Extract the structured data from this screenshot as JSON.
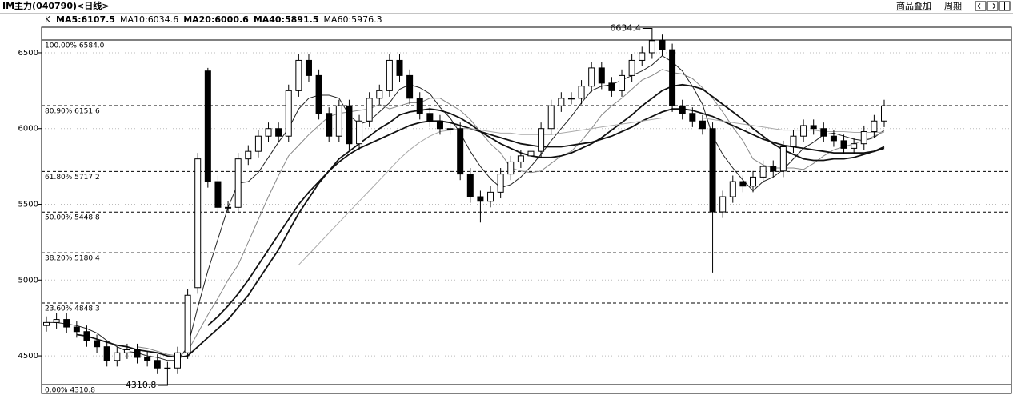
{
  "header": {
    "title": "IM主力(040790)<日线>",
    "overlay": "商品叠加",
    "period": "周期"
  },
  "chart_data": {
    "type": "candlestick",
    "indicator": "K",
    "ylim": [
      4263,
      6753
    ],
    "yticks": [
      4500,
      5000,
      5500,
      6000,
      6500
    ],
    "grid": true,
    "up_color": "#ffffff",
    "down_color": "#000000",
    "open": [
      4700,
      4720,
      4740,
      4690,
      4660,
      4600,
      4560,
      4470,
      4520,
      4540,
      4490,
      4470,
      4420,
      4420,
      4520,
      4950,
      6380,
      5650,
      5480,
      5480,
      5800,
      5850,
      5950,
      6000,
      5950,
      6250,
      6450,
      6350,
      6100,
      5950,
      6150,
      5900,
      6050,
      6200,
      6250,
      6450,
      6350,
      6200,
      6100,
      6050,
      6000,
      6000,
      5700,
      5550,
      5520,
      5580,
      5700,
      5780,
      5820,
      5850,
      6000,
      6150,
      6200,
      6200,
      6280,
      6400,
      6300,
      6250,
      6350,
      6450,
      6500,
      6580,
      6520,
      6150,
      6100,
      6050,
      6000,
      5450,
      5550,
      5650,
      5620,
      5680,
      5750,
      5720,
      5880,
      5950,
      6020,
      6000,
      5950,
      5920,
      5870,
      5900,
      5980,
      6050
    ],
    "high": [
      4760,
      4780,
      4780,
      4730,
      4700,
      4640,
      4600,
      4560,
      4580,
      4580,
      4530,
      4510,
      4460,
      4560,
      4940,
      5840,
      6400,
      5690,
      5520,
      5840,
      5890,
      5990,
      6040,
      6040,
      6290,
      6490,
      6490,
      6390,
      6140,
      6190,
      6190,
      6090,
      6240,
      6290,
      6490,
      6490,
      6390,
      6240,
      6140,
      6090,
      6040,
      6040,
      5740,
      5590,
      5620,
      5740,
      5820,
      5860,
      5890,
      6040,
      6190,
      6240,
      6240,
      6320,
      6440,
      6440,
      6340,
      6390,
      6490,
      6540,
      6634.4,
      6620,
      6560,
      6190,
      6140,
      6090,
      6040,
      5590,
      5690,
      5690,
      5720,
      5790,
      5790,
      5920,
      5990,
      6060,
      6060,
      6040,
      5990,
      5960,
      5940,
      6020,
      6090,
      6190
    ],
    "low": [
      4660,
      4680,
      4650,
      4620,
      4560,
      4520,
      4430,
      4430,
      4480,
      4450,
      4430,
      4380,
      4310.8,
      4380,
      4480,
      4910,
      5610,
      5440,
      5440,
      5440,
      5760,
      5810,
      5910,
      5910,
      5910,
      6210,
      6310,
      6060,
      5910,
      5910,
      5860,
      5860,
      6010,
      6160,
      6210,
      6310,
      6160,
      6060,
      6010,
      5960,
      5960,
      5660,
      5510,
      5380,
      5480,
      5540,
      5660,
      5740,
      5780,
      5810,
      5960,
      6110,
      6160,
      6160,
      6240,
      6260,
      6210,
      6210,
      6310,
      6410,
      6460,
      6480,
      6110,
      6060,
      6010,
      5960,
      5050,
      5410,
      5510,
      5580,
      5580,
      5640,
      5680,
      5680,
      5840,
      5910,
      5960,
      5910,
      5880,
      5830,
      5830,
      5860,
      5940,
      6010
    ],
    "close": [
      4720,
      4740,
      4690,
      4660,
      4600,
      4560,
      4470,
      4520,
      4540,
      4490,
      4470,
      4420,
      4420,
      4520,
      4900,
      5800,
      5650,
      5480,
      5480,
      5800,
      5850,
      5950,
      6000,
      5950,
      6250,
      6450,
      6350,
      6100,
      5950,
      6150,
      5900,
      6050,
      6200,
      6250,
      6450,
      6350,
      6200,
      6100,
      6050,
      6000,
      6000,
      5700,
      5550,
      5520,
      5580,
      5700,
      5780,
      5820,
      5850,
      6000,
      6150,
      6200,
      6200,
      6280,
      6400,
      6300,
      6250,
      6350,
      6450,
      6500,
      6580,
      6520,
      6150,
      6100,
      6050,
      6000,
      5450,
      5550,
      5650,
      5620,
      5680,
      5750,
      5720,
      5880,
      5950,
      6020,
      6000,
      5950,
      5920,
      5870,
      5900,
      5980,
      6050,
      6150
    ],
    "series": [
      {
        "name": "MA5:6107.5",
        "color": "#222222",
        "width": 1,
        "values": [
          4720,
          4720,
          4710,
          4700,
          4680,
          4650,
          4600,
          4560,
          4530,
          4520,
          4500,
          4490,
          4470,
          4470,
          4560,
          4820,
          5060,
          5270,
          5480,
          5640,
          5650,
          5710,
          5810,
          5910,
          6000,
          6130,
          6200,
          6220,
          6220,
          6200,
          6090,
          6030,
          6050,
          6110,
          6170,
          6260,
          6290,
          6270,
          6230,
          6140,
          6070,
          5970,
          5850,
          5750,
          5670,
          5610,
          5630,
          5680,
          5750,
          5830,
          5920,
          6000,
          6080,
          6170,
          6250,
          6280,
          6290,
          6320,
          6350,
          6380,
          6420,
          6480,
          6440,
          6380,
          6280,
          6160,
          5950,
          5830,
          5740,
          5660,
          5590,
          5650,
          5680,
          5730,
          5800,
          5870,
          5910,
          5960,
          5970,
          5950,
          5930,
          5920,
          5940,
          5990
        ]
      },
      {
        "name": "MA10:6034.6",
        "color": "#888888",
        "width": 1,
        "values": [
          null,
          null,
          null,
          null,
          null,
          null,
          null,
          null,
          null,
          4560,
          4550,
          4530,
          4510,
          4500,
          4530,
          4650,
          4770,
          4880,
          5000,
          5100,
          5250,
          5400,
          5550,
          5690,
          5820,
          5890,
          5960,
          6020,
          6080,
          6100,
          6110,
          6120,
          6130,
          6160,
          6130,
          6150,
          6170,
          6170,
          6200,
          6200,
          6160,
          6120,
          6060,
          5980,
          5900,
          5840,
          5740,
          5720,
          5710,
          5720,
          5770,
          5820,
          5850,
          5920,
          6000,
          6090,
          6150,
          6200,
          6260,
          6320,
          6350,
          6390,
          6370,
          6360,
          6330,
          6270,
          6200,
          6110,
          6010,
          5920,
          5800,
          5760,
          5740,
          5740,
          5740,
          5730,
          5770,
          5820,
          5860,
          5880,
          5900,
          5920,
          5950,
          5980
        ]
      },
      {
        "name": "MA20:6000.6",
        "color": "#111111",
        "width": 1.8,
        "values": [
          null,
          null,
          null,
          4640,
          4630,
          4610,
          4590,
          4570,
          4560,
          4540,
          4530,
          4520,
          4500,
          4490,
          4500,
          4560,
          4620,
          4680,
          4740,
          4820,
          4900,
          5000,
          5100,
          5200,
          5320,
          5440,
          5540,
          5640,
          5720,
          5800,
          5850,
          5900,
          5950,
          6000,
          6040,
          6090,
          6110,
          6120,
          6130,
          6120,
          6100,
          6070,
          6030,
          5980,
          5940,
          5900,
          5870,
          5840,
          5820,
          5810,
          5810,
          5820,
          5840,
          5870,
          5900,
          5940,
          5990,
          6040,
          6090,
          6150,
          6200,
          6250,
          6280,
          6290,
          6280,
          6260,
          6210,
          6160,
          6110,
          6060,
          6000,
          5950,
          5900,
          5860,
          5830,
          5800,
          5790,
          5790,
          5800,
          5800,
          5810,
          5830,
          5850,
          5880
        ]
      },
      {
        "name": "MA40:5891.5",
        "color": "#111111",
        "width": 1.8,
        "values": [
          null,
          null,
          null,
          null,
          null,
          null,
          null,
          null,
          null,
          null,
          null,
          null,
          null,
          null,
          null,
          null,
          4700,
          4760,
          4830,
          4910,
          5000,
          5100,
          5200,
          5300,
          5400,
          5500,
          5580,
          5650,
          5720,
          5780,
          5830,
          5870,
          5900,
          5930,
          5960,
          5990,
          6020,
          6040,
          6050,
          6050,
          6040,
          6020,
          6000,
          5980,
          5960,
          5940,
          5920,
          5900,
          5890,
          5880,
          5880,
          5880,
          5890,
          5900,
          5910,
          5930,
          5950,
          5980,
          6010,
          6050,
          6080,
          6110,
          6130,
          6130,
          6120,
          6100,
          6080,
          6050,
          6020,
          5990,
          5960,
          5930,
          5910,
          5890,
          5880,
          5870,
          5860,
          5850,
          5840,
          5840,
          5840,
          5840,
          5850,
          5870
        ]
      },
      {
        "name": "MA60:5976.3",
        "color": "#aaaaaa",
        "width": 1,
        "values": [
          null,
          null,
          null,
          null,
          null,
          null,
          null,
          null,
          null,
          null,
          null,
          null,
          null,
          null,
          null,
          null,
          null,
          null,
          null,
          null,
          null,
          null,
          null,
          null,
          null,
          5100,
          5170,
          5240,
          5310,
          5380,
          5450,
          5520,
          5590,
          5660,
          5730,
          5800,
          5860,
          5910,
          5950,
          5980,
          5990,
          6000,
          6000,
          5990,
          5980,
          5970,
          5970,
          5960,
          5960,
          5960,
          5960,
          5970,
          5980,
          5990,
          6000,
          6010,
          6020,
          6030,
          6040,
          6050,
          6060,
          6070,
          6070,
          6070,
          6070,
          6070,
          6060,
          6050,
          6040,
          6030,
          6020,
          6010,
          6000,
          5990,
          5990,
          5990,
          5990,
          5980,
          5980,
          5980,
          5975,
          5975,
          5975,
          5976
        ]
      }
    ],
    "fib_levels": [
      {
        "value": 6584.0,
        "label": "100.00% 6584.0"
      },
      {
        "value": 6151.6,
        "label": "80.90% 6151.6"
      },
      {
        "value": 5717.2,
        "label": "61.80% 5717.2"
      },
      {
        "value": 5448.8,
        "label": "50.00% 5448.8"
      },
      {
        "value": 5180.4,
        "label": "38.20% 5180.4"
      },
      {
        "value": 4848.3,
        "label": "23.60% 4848.3"
      },
      {
        "value": 4310.8,
        "label": "0.00% 4310.8"
      }
    ],
    "high_annotation": 6634.4,
    "low_annotation": 4310.8
  }
}
